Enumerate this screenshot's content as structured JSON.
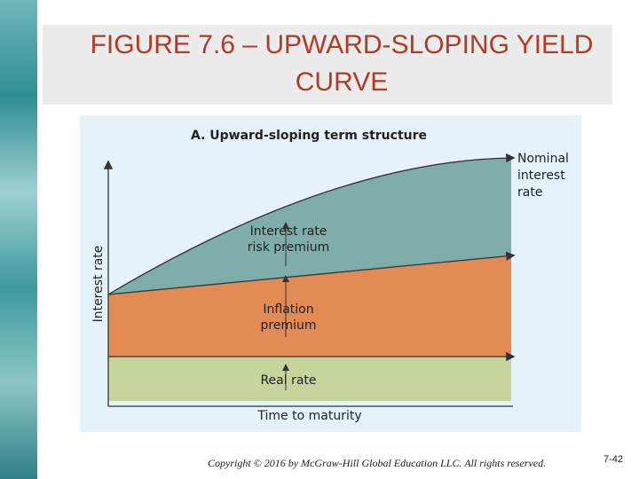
{
  "header": {
    "title": "FIGURE 7.6 – UPWARD-SLOPING YIELD CURVE"
  },
  "diagram": {
    "panel_title": "A. Upward-sloping term structure",
    "nominal_rate": [
      "Nominal",
      "interest",
      "rate"
    ],
    "risk_premium": [
      "Interest rate",
      "risk premium"
    ],
    "inflation_premium": [
      "Inflation",
      "premium"
    ],
    "real_rate": "Real rate",
    "x_axis": "Time to maturity",
    "y_axis": "Interest rate"
  },
  "footer": {
    "copyright": "Copyright © 2016 by McGraw-Hill Global Education LLC. All rights reserved.",
    "page": "7-42"
  }
}
